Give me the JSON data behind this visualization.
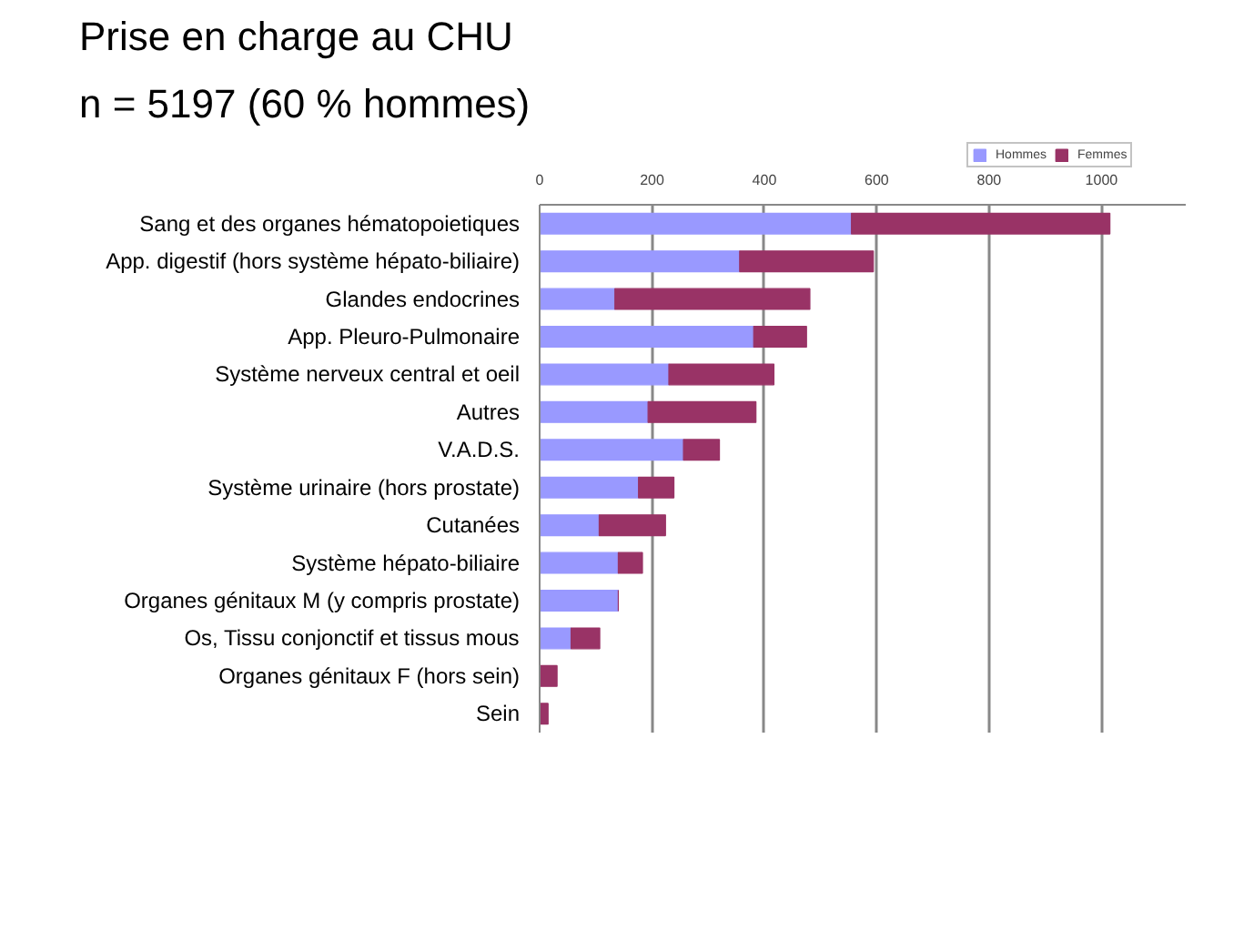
{
  "chart_data": {
    "type": "bar",
    "orientation": "horizontal",
    "stacked": true,
    "title": "Prise en charge au CHU",
    "subtitle": "n = 5197 (60 % hommes)",
    "categories": [
      "Sang et des organes hématopoietiques",
      "App. digestif (hors système hépato-biliaire)",
      "Glandes endocrines",
      "App. Pleuro-Pulmonaire",
      "Système nerveux central et oeil",
      "Autres",
      "V.A.D.S.",
      "Système urinaire (hors prostate)",
      "Cutanées",
      "Système hépato-biliaire",
      "Organes génitaux M (y compris prostate)",
      "Os, Tissu conjonctif et tissus mous",
      "Organes génitaux F (hors sein)",
      "Sein"
    ],
    "series": [
      {
        "name": "Hommes",
        "color": "#9999ff",
        "values": [
          555,
          356,
          134,
          381,
          230,
          193,
          256,
          176,
          106,
          140,
          140,
          56,
          0,
          0
        ]
      },
      {
        "name": "Femmes",
        "color": "#993366",
        "values": [
          460,
          238,
          347,
          94,
          187,
          192,
          64,
          63,
          118,
          43,
          0,
          51,
          31,
          15
        ]
      }
    ],
    "xlim": [
      0,
      1150
    ],
    "xticks": [
      0,
      200,
      400,
      600,
      800,
      1000
    ],
    "grid": "x",
    "legend": "top right"
  }
}
